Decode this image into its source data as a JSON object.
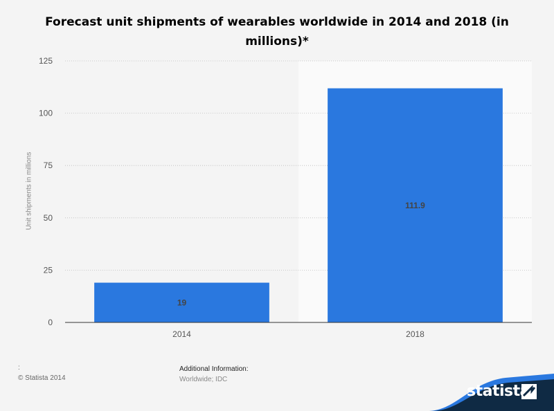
{
  "chart_data": {
    "type": "bar",
    "title": "Forecast unit shipments of wearables worldwide in 2014 and 2018 (in millions)*",
    "categories": [
      "2014",
      "2018"
    ],
    "values": [
      19,
      111.9
    ],
    "data_labels": [
      "19",
      "111.9"
    ],
    "xlabel": "",
    "ylabel": "Unit shipments in millions",
    "ylim": [
      0,
      125
    ],
    "yticks": [
      0,
      25,
      50,
      75,
      100,
      125
    ],
    "grid": true,
    "highlight_category": "2018",
    "bar_color": "#2a78df"
  },
  "footer": {
    "source_prefix": ":",
    "copyright": "© Statista 2014",
    "additional_heading": "Additional Information:",
    "additional_text": "Worldwide; IDC"
  },
  "brand": {
    "name": "statista",
    "colors": {
      "dark": "#0f2a44",
      "accent": "#2a78df"
    }
  }
}
